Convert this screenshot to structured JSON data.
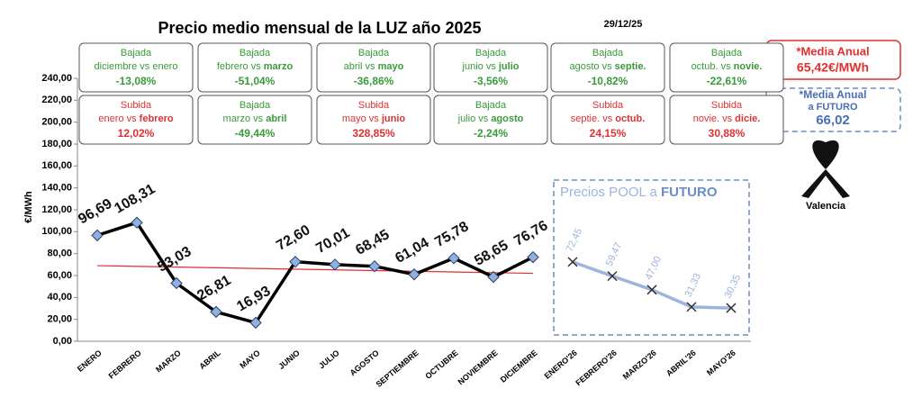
{
  "chart_data": {
    "type": "line",
    "title": "Precio medio mensual de la LUZ año 2025",
    "date": "29/12/25",
    "y_label": "€/MWh",
    "categories": [
      "ENERO",
      "FEBRERO",
      "MARZO",
      "ABRIL",
      "MAYO",
      "JUNIO",
      "JULIO",
      "AGOSTO",
      "SEPTIEMBRE",
      "OCTUBRE",
      "NOVIEMBRE",
      "DICIEMBRE",
      "ENERO'26",
      "FEBRERO'26",
      "MARZO'26",
      "ABRIL'26",
      "MAYO'26"
    ],
    "series": [
      {
        "color": "#000000",
        "marker_color": "#8fb0e0",
        "label_color": "#111111",
        "values": [
          96.69,
          108.31,
          53.03,
          26.81,
          16.93,
          72.6,
          70.01,
          68.45,
          61.04,
          75.78,
          58.65,
          76.76,
          null,
          null,
          null,
          null,
          null
        ],
        "value_labels": [
          "96,69",
          "108,31",
          "53,03",
          "26,81",
          "16,93",
          "72,60",
          "70,01",
          "68,45",
          "61,04",
          "75,78",
          "58,65",
          "76,76",
          null,
          null,
          null,
          null,
          null
        ]
      },
      {
        "color": "#9db4dd",
        "marker_color": "#333333",
        "label_color": "#9db4dd",
        "values": [
          null,
          null,
          null,
          null,
          null,
          null,
          null,
          null,
          null,
          null,
          null,
          null,
          72.45,
          59.47,
          47.0,
          31.33,
          30.35
        ],
        "value_labels": [
          null,
          null,
          null,
          null,
          null,
          null,
          null,
          null,
          null,
          null,
          null,
          null,
          "72,45",
          "59,47",
          "47,00",
          "31,33",
          "30,35"
        ]
      }
    ],
    "trendline": {
      "color": "#e03030",
      "values": [
        69,
        62
      ]
    },
    "ylim": [
      0,
      240
    ],
    "yticks": [
      {
        "value": 0,
        "label": "0,00"
      },
      {
        "value": 20,
        "label": "20,00"
      },
      {
        "value": 40,
        "label": "40,00"
      },
      {
        "value": 60,
        "label": "60,00"
      },
      {
        "value": 80,
        "label": "80,00"
      },
      {
        "value": 100,
        "label": "100,00"
      },
      {
        "value": 120,
        "label": "120,00"
      },
      {
        "value": 140,
        "label": "140,00"
      },
      {
        "value": 160,
        "label": "160,00"
      },
      {
        "value": 180,
        "label": "180,00"
      },
      {
        "value": 200,
        "label": "200,00"
      },
      {
        "value": 220,
        "label": "220,00"
      },
      {
        "value": 240,
        "label": "240,00"
      }
    ],
    "future_box": {
      "label": "Precios POOL a ",
      "label_bold": "FUTURO"
    }
  },
  "comparisons": [
    {
      "label": "Bajada",
      "from": "diciembre vs ",
      "to": "enero",
      "value": "-13,08%"
    },
    {
      "label": "Bajada",
      "from": "febrero vs ",
      "to": "marzo",
      "value": "-51,04%"
    },
    {
      "label": "Bajada",
      "from": "abril vs ",
      "to": "mayo",
      "value": "-36,86%"
    },
    {
      "label": "Bajada",
      "from": "junio vs ",
      "to": "julio",
      "value": "-3,56%"
    },
    {
      "label": "Bajada",
      "from": "agosto vs ",
      "to": "septie.",
      "value": "-10,82%"
    },
    {
      "label": "Bajada",
      "from": "octub. vs ",
      "to": "novie.",
      "value": "-22,61%"
    },
    {
      "label": "Subida",
      "from": "enero vs ",
      "to": "febrero",
      "value": "12,02%"
    },
    {
      "label": "Bajada",
      "from": "marzo vs ",
      "to": "abril",
      "value": "-49,44%"
    },
    {
      "label": "Subida",
      "from": "mayo vs ",
      "to": "junio",
      "value": "328,85%"
    },
    {
      "label": "Bajada",
      "from": "julio vs ",
      "to": "agosto",
      "value": "-2,24%"
    },
    {
      "label": "Subida",
      "from": "septie. vs ",
      "to": "octub.",
      "value": "24,15%"
    },
    {
      "label": "Subida",
      "from": "novie. vs ",
      "to": "dicie.",
      "value": "30,88%"
    }
  ],
  "summary": {
    "annual": {
      "label": "*Media Anual",
      "value": "65,42€/MWh"
    },
    "future": {
      "label": "*Media Anual",
      "label2": "a FUTURO",
      "value": "66,02"
    },
    "place": "Valencia"
  }
}
